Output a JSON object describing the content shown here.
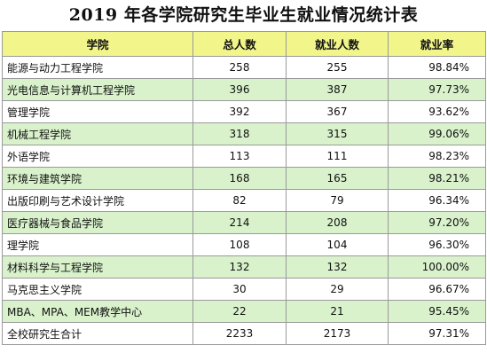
{
  "title": "2019 年各学院研究生毕业生就业情况统计表",
  "headers": [
    "学院",
    "总人数",
    "就业人数",
    "就业率"
  ],
  "rows": [
    {
      "name": "能源与动力工程学院",
      "total": "258",
      "employed": "255",
      "rate": "98.84%"
    },
    {
      "name": "光电信息与计算机工程学院",
      "total": "396",
      "employed": "387",
      "rate": "97.73%"
    },
    {
      "name": "管理学院",
      "total": "392",
      "employed": "367",
      "rate": "93.62%"
    },
    {
      "name": "机械工程学院",
      "total": "318",
      "employed": "315",
      "rate": "99.06%"
    },
    {
      "name": "外语学院",
      "total": "113",
      "employed": "111",
      "rate": "98.23%"
    },
    {
      "name": "环境与建筑学院",
      "total": "168",
      "employed": "165",
      "rate": "98.21%"
    },
    {
      "name": "出版印刷与艺术设计学院",
      "total": "82",
      "employed": "79",
      "rate": "96.34%"
    },
    {
      "name": "医疗器械与食品学院",
      "total": "214",
      "employed": "208",
      "rate": "97.20%"
    },
    {
      "name": "理学院",
      "total": "108",
      "employed": "104",
      "rate": "96.30%"
    },
    {
      "name": "材料科学与工程学院",
      "total": "132",
      "employed": "132",
      "rate": "100.00%"
    },
    {
      "name": "马克思主义学院",
      "total": "30",
      "employed": "29",
      "rate": "96.67%"
    },
    {
      "name": "MBA、MPA、MEM教学中心",
      "total": "22",
      "employed": "21",
      "rate": "95.45%"
    },
    {
      "name": "全校研究生合计",
      "total": "2233",
      "employed": "2173",
      "rate": "97.31%"
    }
  ],
  "colors": {
    "header_bg": "#f1f58a",
    "alt_row_bg": "#d9f2cc",
    "border": "#9a9a9a"
  }
}
